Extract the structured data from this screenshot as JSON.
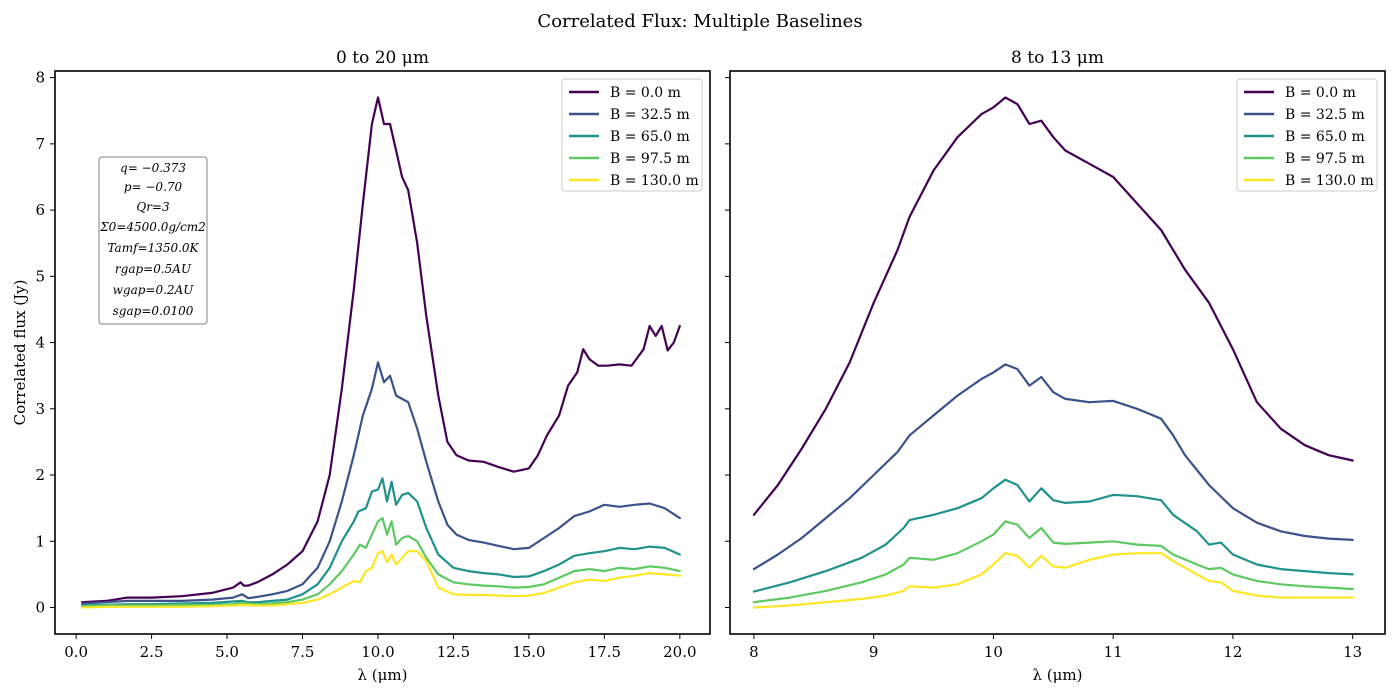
{
  "figure": {
    "title": "Correlated Flux: Multiple Baselines",
    "param_box": [
      "q= −0.373",
      "p= −0.70",
      "Qr=3",
      "Σ0=4500.0g/cm2",
      "Tamf=1350.0K",
      "rgap=0.5AU",
      "wgap=0.2AU",
      "sgap=0.0100"
    ]
  },
  "chart_data": [
    {
      "type": "line",
      "title": "0 to 20 μm",
      "xlabel": "λ (μm)",
      "ylabel": "Correlated flux (Jy)",
      "xlim": [
        -0.7,
        21.0
      ],
      "ylim": [
        -0.4,
        8.1
      ],
      "xticks": [
        0.0,
        2.5,
        5.0,
        7.5,
        10.0,
        12.5,
        15.0,
        17.5,
        20.0
      ],
      "xtick_labels": [
        "0.0",
        "2.5",
        "5.0",
        "7.5",
        "10.0",
        "12.5",
        "15.0",
        "17.5",
        "20.0"
      ],
      "yticks": [
        0,
        1,
        2,
        3,
        4,
        5,
        6,
        7,
        8
      ],
      "ytick_labels": [
        "0",
        "1",
        "2",
        "3",
        "4",
        "5",
        "6",
        "7",
        "8"
      ],
      "legend_position": "top-right",
      "grid": false,
      "series": [
        {
          "name": "B = 0.0 m",
          "color": "#440154",
          "x": [
            0.2,
            1.0,
            1.7,
            2.5,
            3.5,
            4.5,
            5.2,
            5.45,
            5.55,
            5.7,
            6.0,
            6.5,
            7.0,
            7.5,
            8.0,
            8.4,
            8.8,
            9.2,
            9.5,
            9.8,
            10.0,
            10.2,
            10.4,
            10.6,
            10.8,
            11.0,
            11.3,
            11.6,
            12.0,
            12.3,
            12.6,
            13.0,
            13.5,
            14.0,
            14.5,
            15.0,
            15.3,
            15.6,
            16.0,
            16.3,
            16.6,
            16.8,
            17.0,
            17.3,
            17.6,
            18.0,
            18.4,
            18.8,
            19.0,
            19.2,
            19.4,
            19.6,
            19.8,
            20.0
          ],
          "y": [
            0.08,
            0.1,
            0.15,
            0.15,
            0.17,
            0.22,
            0.3,
            0.38,
            0.33,
            0.33,
            0.38,
            0.5,
            0.65,
            0.85,
            1.3,
            2.0,
            3.3,
            4.8,
            6.1,
            7.3,
            7.7,
            7.3,
            7.3,
            6.9,
            6.5,
            6.3,
            5.5,
            4.4,
            3.2,
            2.5,
            2.3,
            2.22,
            2.2,
            2.12,
            2.05,
            2.1,
            2.3,
            2.6,
            2.9,
            3.35,
            3.55,
            3.9,
            3.75,
            3.65,
            3.65,
            3.67,
            3.65,
            3.9,
            4.25,
            4.1,
            4.25,
            3.88,
            4.0,
            4.25
          ]
        },
        {
          "name": "B = 32.5 m",
          "color": "#3b528b",
          "x": [
            0.2,
            1.0,
            1.7,
            2.5,
            3.5,
            4.5,
            5.2,
            5.5,
            5.7,
            6.0,
            6.5,
            7.0,
            7.5,
            8.0,
            8.4,
            8.8,
            9.2,
            9.5,
            9.8,
            10.0,
            10.2,
            10.4,
            10.6,
            10.8,
            11.0,
            11.3,
            11.6,
            12.0,
            12.3,
            12.6,
            13.0,
            13.5,
            14.0,
            14.5,
            15.0,
            15.5,
            16.0,
            16.5,
            17.0,
            17.5,
            18.0,
            18.5,
            19.0,
            19.5,
            20.0
          ],
          "y": [
            0.06,
            0.08,
            0.1,
            0.1,
            0.1,
            0.12,
            0.15,
            0.2,
            0.14,
            0.16,
            0.2,
            0.25,
            0.35,
            0.6,
            1.0,
            1.6,
            2.3,
            2.9,
            3.3,
            3.7,
            3.4,
            3.5,
            3.2,
            3.15,
            3.1,
            2.7,
            2.2,
            1.6,
            1.25,
            1.1,
            1.02,
            0.98,
            0.93,
            0.88,
            0.9,
            1.05,
            1.2,
            1.38,
            1.45,
            1.55,
            1.52,
            1.55,
            1.57,
            1.5,
            1.35
          ]
        },
        {
          "name": "B = 65.0 m",
          "color": "#21918c",
          "x": [
            0.2,
            1.0,
            1.7,
            2.5,
            3.5,
            4.5,
            5.2,
            5.5,
            5.7,
            6.0,
            6.5,
            7.0,
            7.5,
            8.0,
            8.4,
            8.8,
            9.2,
            9.35,
            9.6,
            9.8,
            10.0,
            10.15,
            10.3,
            10.45,
            10.6,
            10.8,
            11.0,
            11.3,
            11.6,
            12.0,
            12.5,
            13.0,
            13.5,
            14.0,
            14.5,
            15.0,
            15.5,
            16.0,
            16.5,
            17.0,
            17.5,
            18.0,
            18.5,
            19.0,
            19.5,
            20.0
          ],
          "y": [
            0.03,
            0.04,
            0.05,
            0.05,
            0.06,
            0.07,
            0.09,
            0.1,
            0.08,
            0.08,
            0.1,
            0.12,
            0.2,
            0.35,
            0.6,
            1.0,
            1.3,
            1.45,
            1.5,
            1.75,
            1.78,
            1.95,
            1.6,
            1.9,
            1.55,
            1.7,
            1.73,
            1.6,
            1.2,
            0.8,
            0.6,
            0.55,
            0.52,
            0.5,
            0.46,
            0.47,
            0.55,
            0.65,
            0.78,
            0.82,
            0.85,
            0.9,
            0.88,
            0.92,
            0.9,
            0.8
          ]
        },
        {
          "name": "B = 97.5 m",
          "color": "#5ec962",
          "x": [
            0.2,
            1.0,
            1.7,
            2.5,
            3.5,
            4.5,
            5.2,
            5.5,
            6.0,
            6.5,
            7.0,
            7.5,
            8.0,
            8.4,
            8.8,
            9.2,
            9.4,
            9.6,
            9.8,
            10.0,
            10.15,
            10.3,
            10.45,
            10.6,
            10.8,
            11.0,
            11.3,
            11.6,
            12.0,
            12.5,
            13.0,
            13.5,
            14.0,
            14.5,
            15.0,
            15.5,
            16.0,
            16.5,
            17.0,
            17.5,
            18.0,
            18.5,
            19.0,
            19.5,
            20.0
          ],
          "y": [
            0.02,
            0.03,
            0.03,
            0.03,
            0.04,
            0.04,
            0.05,
            0.07,
            0.05,
            0.06,
            0.08,
            0.12,
            0.2,
            0.35,
            0.55,
            0.8,
            0.95,
            0.9,
            1.1,
            1.3,
            1.35,
            1.1,
            1.3,
            0.95,
            1.05,
            1.08,
            1.0,
            0.75,
            0.5,
            0.38,
            0.35,
            0.33,
            0.32,
            0.3,
            0.31,
            0.35,
            0.45,
            0.55,
            0.58,
            0.55,
            0.6,
            0.58,
            0.62,
            0.6,
            0.55
          ]
        },
        {
          "name": "B = 130.0 m",
          "color": "#fde725",
          "x": [
            0.2,
            1.0,
            1.7,
            2.5,
            3.5,
            4.5,
            5.2,
            5.5,
            6.0,
            6.5,
            7.0,
            7.5,
            8.0,
            8.4,
            8.8,
            9.2,
            9.4,
            9.6,
            9.8,
            10.0,
            10.15,
            10.3,
            10.45,
            10.6,
            10.8,
            11.0,
            11.3,
            11.6,
            12.0,
            12.5,
            13.0,
            13.5,
            14.0,
            14.5,
            15.0,
            15.5,
            16.0,
            16.5,
            17.0,
            17.5,
            18.0,
            18.5,
            19.0,
            19.5,
            20.0
          ],
          "y": [
            0.0,
            0.01,
            0.01,
            0.01,
            0.01,
            0.02,
            0.03,
            0.04,
            0.03,
            0.03,
            0.05,
            0.07,
            0.12,
            0.2,
            0.3,
            0.4,
            0.38,
            0.55,
            0.6,
            0.82,
            0.85,
            0.68,
            0.8,
            0.65,
            0.75,
            0.85,
            0.85,
            0.7,
            0.3,
            0.2,
            0.19,
            0.19,
            0.18,
            0.17,
            0.18,
            0.22,
            0.3,
            0.38,
            0.42,
            0.4,
            0.45,
            0.48,
            0.52,
            0.5,
            0.48
          ]
        }
      ]
    },
    {
      "type": "line",
      "title": "8 to 13 μm",
      "xlabel": "λ (μm)",
      "ylabel": "",
      "xlim": [
        7.8,
        13.27
      ],
      "ylim": [
        -0.4,
        8.1
      ],
      "xticks": [
        8,
        9,
        10,
        11,
        12,
        13
      ],
      "xtick_labels": [
        "8",
        "9",
        "10",
        "11",
        "12",
        "13"
      ],
      "yticks": [
        0,
        1,
        2,
        3,
        4,
        5,
        6,
        7,
        8
      ],
      "ytick_labels": [],
      "legend_position": "top-right",
      "grid": false,
      "series": [
        {
          "name": "B = 0.0 m",
          "color": "#440154",
          "x": [
            8.0,
            8.2,
            8.4,
            8.6,
            8.8,
            9.0,
            9.2,
            9.3,
            9.5,
            9.7,
            9.9,
            10.0,
            10.1,
            10.2,
            10.3,
            10.4,
            10.5,
            10.6,
            10.8,
            11.0,
            11.2,
            11.4,
            11.6,
            11.8,
            12.0,
            12.2,
            12.4,
            12.6,
            12.8,
            13.0
          ],
          "y": [
            1.4,
            1.85,
            2.4,
            3.0,
            3.7,
            4.6,
            5.4,
            5.9,
            6.6,
            7.1,
            7.45,
            7.55,
            7.7,
            7.6,
            7.3,
            7.35,
            7.1,
            6.9,
            6.7,
            6.5,
            6.1,
            5.7,
            5.1,
            4.6,
            3.9,
            3.1,
            2.7,
            2.45,
            2.3,
            2.22
          ]
        },
        {
          "name": "B = 32.5 m",
          "color": "#3b528b",
          "x": [
            8.0,
            8.2,
            8.4,
            8.6,
            8.8,
            9.0,
            9.2,
            9.3,
            9.5,
            9.7,
            9.9,
            10.0,
            10.1,
            10.2,
            10.3,
            10.4,
            10.5,
            10.6,
            10.8,
            11.0,
            11.2,
            11.4,
            11.5,
            11.6,
            11.8,
            12.0,
            12.2,
            12.4,
            12.6,
            12.8,
            13.0
          ],
          "y": [
            0.58,
            0.8,
            1.05,
            1.35,
            1.65,
            2.0,
            2.35,
            2.6,
            2.9,
            3.2,
            3.45,
            3.55,
            3.67,
            3.6,
            3.35,
            3.48,
            3.25,
            3.15,
            3.1,
            3.12,
            3.0,
            2.85,
            2.6,
            2.3,
            1.85,
            1.5,
            1.28,
            1.15,
            1.08,
            1.04,
            1.02
          ]
        },
        {
          "name": "B = 65.0 m",
          "color": "#21918c",
          "x": [
            8.0,
            8.3,
            8.6,
            8.9,
            9.1,
            9.25,
            9.3,
            9.5,
            9.7,
            9.9,
            10.0,
            10.1,
            10.2,
            10.3,
            10.4,
            10.5,
            10.6,
            10.8,
            11.0,
            11.2,
            11.4,
            11.5,
            11.7,
            11.8,
            11.9,
            12.0,
            12.2,
            12.4,
            12.6,
            12.8,
            13.0
          ],
          "y": [
            0.24,
            0.38,
            0.55,
            0.75,
            0.95,
            1.2,
            1.32,
            1.4,
            1.5,
            1.65,
            1.8,
            1.93,
            1.85,
            1.6,
            1.8,
            1.62,
            1.58,
            1.6,
            1.7,
            1.68,
            1.62,
            1.4,
            1.15,
            0.95,
            0.98,
            0.8,
            0.65,
            0.58,
            0.55,
            0.52,
            0.5
          ]
        },
        {
          "name": "B = 97.5 m",
          "color": "#5ec962",
          "x": [
            8.0,
            8.3,
            8.6,
            8.9,
            9.1,
            9.25,
            9.3,
            9.5,
            9.7,
            9.9,
            10.0,
            10.1,
            10.2,
            10.3,
            10.4,
            10.5,
            10.6,
            10.8,
            11.0,
            11.2,
            11.4,
            11.5,
            11.7,
            11.8,
            11.9,
            12.0,
            12.2,
            12.4,
            12.6,
            12.8,
            13.0
          ],
          "y": [
            0.08,
            0.15,
            0.25,
            0.38,
            0.5,
            0.65,
            0.75,
            0.72,
            0.82,
            1.0,
            1.1,
            1.3,
            1.25,
            1.05,
            1.2,
            0.98,
            0.96,
            0.98,
            1.0,
            0.95,
            0.93,
            0.8,
            0.65,
            0.58,
            0.6,
            0.5,
            0.4,
            0.35,
            0.32,
            0.3,
            0.28
          ]
        },
        {
          "name": "B = 130.0 m",
          "color": "#fde725",
          "x": [
            8.0,
            8.3,
            8.6,
            8.9,
            9.1,
            9.25,
            9.3,
            9.5,
            9.7,
            9.9,
            10.0,
            10.1,
            10.2,
            10.3,
            10.4,
            10.5,
            10.6,
            10.8,
            11.0,
            11.2,
            11.4,
            11.5,
            11.7,
            11.8,
            11.9,
            12.0,
            12.2,
            12.4,
            12.6,
            12.8,
            13.0
          ],
          "y": [
            0.0,
            0.03,
            0.08,
            0.13,
            0.18,
            0.25,
            0.32,
            0.3,
            0.35,
            0.5,
            0.65,
            0.82,
            0.78,
            0.6,
            0.78,
            0.62,
            0.6,
            0.72,
            0.8,
            0.82,
            0.82,
            0.7,
            0.5,
            0.4,
            0.38,
            0.25,
            0.18,
            0.15,
            0.15,
            0.15,
            0.15
          ]
        }
      ]
    }
  ]
}
